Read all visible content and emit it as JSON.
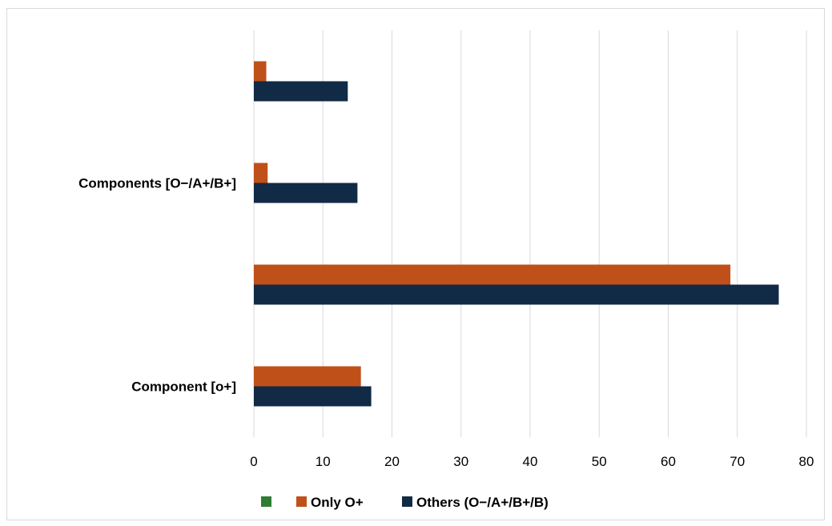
{
  "chart_data": {
    "type": "bar",
    "orientation": "horizontal",
    "categories": [
      "Component [o+]",
      "",
      "Components [O−/A+/B+]",
      ""
    ],
    "series": [
      {
        "name": "",
        "color": "#2e7d32",
        "values": [
          0,
          0,
          0,
          0
        ]
      },
      {
        "name": "Only O+",
        "color": "#c0501a",
        "values": [
          15.5,
          69,
          2,
          1.8
        ]
      },
      {
        "name": "Others (O−/A+/B+/B)",
        "color": "#112a45",
        "values": [
          17,
          76,
          15,
          13.6
        ]
      }
    ],
    "xlim": [
      0,
      80
    ],
    "xticks": [
      0,
      10,
      20,
      30,
      40,
      50,
      60,
      70,
      80
    ],
    "grid": "vertical",
    "legend_position": "bottom",
    "title": "",
    "xlabel": "",
    "ylabel": ""
  }
}
